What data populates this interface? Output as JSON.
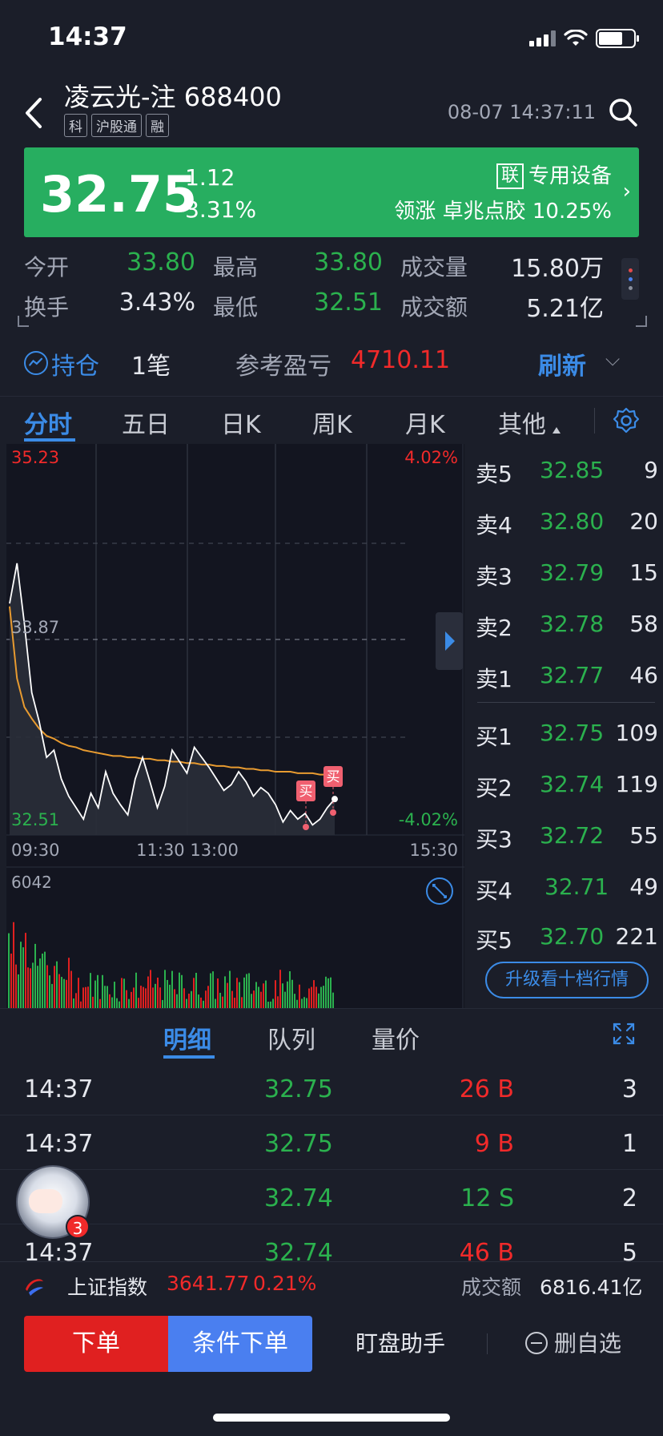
{
  "status": {
    "time": "14:37"
  },
  "header": {
    "stock_name": "凌云光-注",
    "stock_code": "688400",
    "tags": [
      "科",
      "沪股通",
      "融"
    ],
    "datetime": "08-07 14:37:11"
  },
  "quote": {
    "price": "32.75",
    "change": "-1.12",
    "change_pct": "-3.31%",
    "sector_tag": "联",
    "sector": "专用设备",
    "leader_label": "领涨",
    "leader_name": "卓兆点胶",
    "leader_pct": "10.25%",
    "colors": {
      "banner": "#27ae60",
      "up": "#f12a2a",
      "down": "#2bb14e"
    }
  },
  "stats": {
    "open_label": "今开",
    "open": "33.80",
    "high_label": "最高",
    "high": "33.80",
    "volume_label": "成交量",
    "volume": "15.80万",
    "turnover_rate_label": "换手",
    "turnover_rate": "3.43%",
    "low_label": "最低",
    "low": "32.51",
    "amount_label": "成交额",
    "amount": "5.21亿"
  },
  "position": {
    "label": "持仓",
    "count": "1笔",
    "pnl_label": "参考盈亏",
    "pnl": "4710.11",
    "refresh": "刷新"
  },
  "chart_tabs": [
    "分时",
    "五日",
    "日K",
    "周K",
    "月K",
    "其他"
  ],
  "intraday": {
    "top_price": "35.23",
    "mid_price": "33.87",
    "bottom_price": "32.51",
    "top_pct": "4.02%",
    "bottom_pct": "-4.02%",
    "time_labels": [
      "09:30",
      "11:30 13:00",
      "15:30"
    ],
    "volume_max": "6042",
    "buy_marker": "买"
  },
  "chart_data": {
    "type": "line",
    "x_range": [
      "09:30",
      "15:30"
    ],
    "ylim": [
      32.51,
      35.23
    ],
    "y_ref": 33.87,
    "series": [],
    "points_price": [
      34.12,
      34.4,
      33.98,
      33.5,
      33.3,
      33.05,
      33.1,
      32.9,
      32.78,
      32.7,
      32.62,
      32.8,
      32.7,
      32.95,
      32.8,
      32.72,
      32.65,
      32.9,
      33.05,
      32.88,
      32.7,
      32.85,
      33.1,
      33.02,
      32.94,
      33.12,
      33.05,
      32.98,
      32.9,
      32.82,
      32.86,
      32.95,
      32.88,
      32.78,
      32.84,
      32.8,
      32.72,
      32.6,
      32.68,
      32.62,
      32.66,
      32.58,
      32.62,
      32.7,
      32.76
    ],
    "points_avg": [
      34.1,
      33.6,
      33.4,
      33.32,
      33.25,
      33.2,
      33.18,
      33.15,
      33.13,
      33.12,
      33.1,
      33.09,
      33.08,
      33.07,
      33.06,
      33.06,
      33.05,
      33.05,
      33.04,
      33.04,
      33.03,
      33.03,
      33.02,
      33.02,
      33.01,
      33.01,
      33.0,
      33.0,
      32.99,
      32.99,
      32.98,
      32.98,
      32.97,
      32.97,
      32.96,
      32.96,
      32.95,
      32.95,
      32.95,
      32.94,
      32.94,
      32.94,
      32.93,
      32.93,
      32.93
    ]
  },
  "order_book": {
    "asks": [
      {
        "label": "卖5",
        "price": "32.85",
        "vol": "9"
      },
      {
        "label": "卖4",
        "price": "32.80",
        "vol": "20"
      },
      {
        "label": "卖3",
        "price": "32.79",
        "vol": "15"
      },
      {
        "label": "卖2",
        "price": "32.78",
        "vol": "58"
      },
      {
        "label": "卖1",
        "price": "32.77",
        "vol": "46"
      }
    ],
    "bids": [
      {
        "label": "买1",
        "price": "32.75",
        "vol": "109"
      },
      {
        "label": "买2",
        "price": "32.74",
        "vol": "119"
      },
      {
        "label": "买3",
        "price": "32.72",
        "vol": "55"
      },
      {
        "label": "买4",
        "price": "32.71",
        "vol": "49"
      },
      {
        "label": "买5",
        "price": "32.70",
        "vol": "221"
      }
    ],
    "upgrade": "升级看十档行情"
  },
  "detail_tabs": [
    "明细",
    "队列",
    "量价"
  ],
  "trades": [
    {
      "time": "14:37",
      "price": "32.75",
      "vol": "26 B",
      "count": "3",
      "side": "B"
    },
    {
      "time": "14:37",
      "price": "32.75",
      "vol": "9 B",
      "count": "1",
      "side": "B"
    },
    {
      "time": "",
      "price": "32.74",
      "vol": "12 S",
      "count": "2",
      "side": "S"
    },
    {
      "time": "14:37",
      "price": "32.74",
      "vol": "46 B",
      "count": "5",
      "side": "B"
    }
  ],
  "assistant_badge": "3",
  "index_bar": {
    "name": "上证指数",
    "value": "3641.77",
    "pct": "0.21%",
    "turnover_label": "成交额",
    "turnover": "6816.41亿"
  },
  "actions": {
    "order": "下单",
    "cond_order": "条件下单",
    "watch": "盯盘助手",
    "remove": "删自选"
  }
}
